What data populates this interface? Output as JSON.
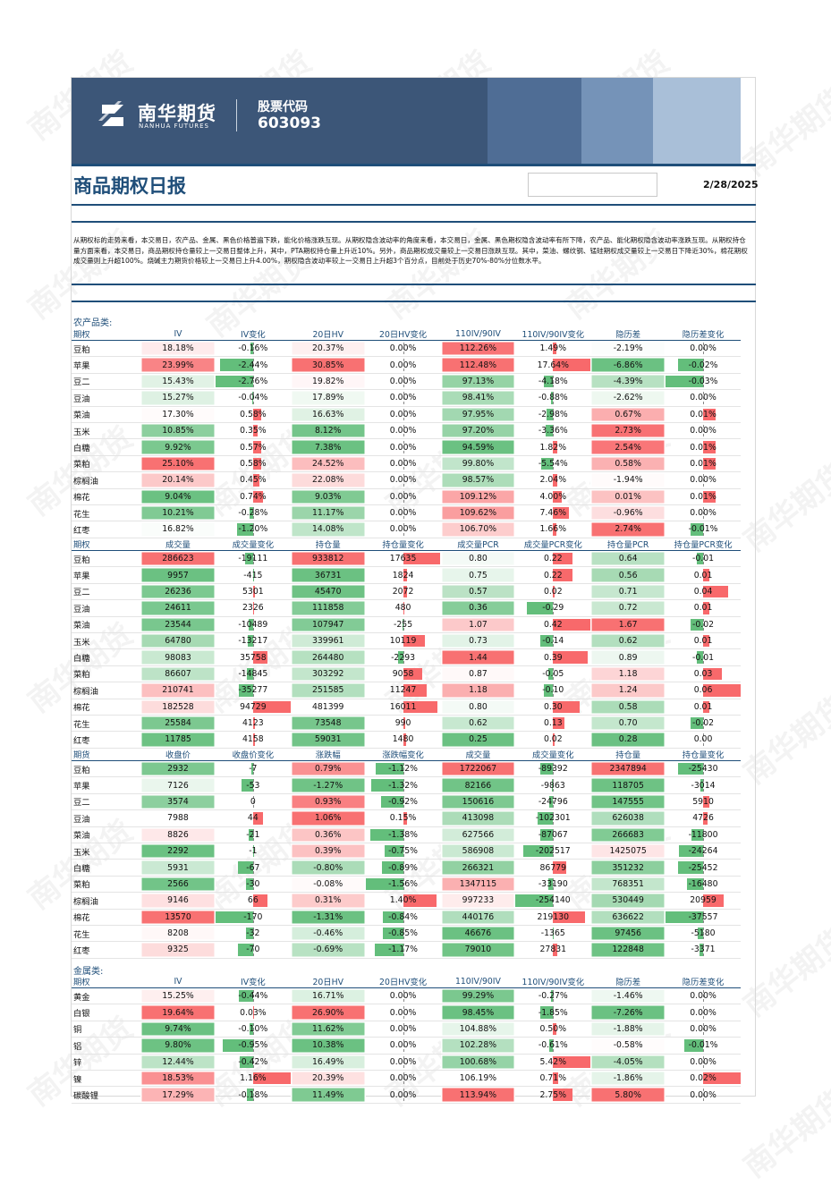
{
  "header": {
    "logo_cn": "南华期货",
    "logo_en": "NANHUA FUTURES",
    "stock_label": "股票代码",
    "stock_code": "603093",
    "report_title": "商品期权日报",
    "date": "2/28/2025"
  },
  "summary": "从期权标的走势来看，本交易日，农产品、金属、黑色价格普遍下跌，能化价格涨跌互现。从期权隐含波动率的角度来看，本交易日，金属、黑色期权隐含波动率有所下降，农产品、能化期权隐含波动率涨跌互现。从期权持仓量方面来看，本交易日，商品期权持仓量较上一交易日整体上升，其中，PTA期权持仓量上升近10%。另外，商品期权成交量较上一交易日涨跌互现。其中，菜油、螺纹钢、锰硅期权成交量较上一交易日下降近30%，棉花期权成交量则上升超100%。烧碱主力期货价格较上一交易日上升4.00%，期权隐含波动率较上一交易日上升超3个百分点，目前处于历史70%-80%分位数水平。",
  "colors": {
    "brand_blue": "#1f4e79",
    "pos_red": "#f8696b",
    "neg_green": "#63be7b"
  },
  "watermark": "南华期货",
  "sections": [
    {
      "title": "农产品类:",
      "table": {
        "headers": [
          "期权",
          "IV",
          "IV变化",
          "20日HV",
          "20日HV变化",
          "110IV/90IV",
          "110IV/90IV变化",
          "隐历差",
          "隐历差变化"
        ],
        "types": [
          "label",
          "scale",
          "bar",
          "scale",
          "bar",
          "scale",
          "bar",
          "scale",
          "bar"
        ],
        "rows": [
          [
            "豆粕",
            "18.18%",
            "-0.16%",
            "20.37%",
            "0.00%",
            "112.26%",
            "1.49%",
            "-2.19%",
            "0.00%"
          ],
          [
            "苹果",
            "23.99%",
            "-2.44%",
            "30.85%",
            "0.00%",
            "112.48%",
            "17.64%",
            "-6.86%",
            "-0.02%"
          ],
          [
            "豆二",
            "15.43%",
            "-2.76%",
            "19.82%",
            "0.00%",
            "97.13%",
            "-4.18%",
            "-4.39%",
            "-0.03%"
          ],
          [
            "豆油",
            "15.27%",
            "-0.04%",
            "17.89%",
            "0.00%",
            "98.41%",
            "-0.88%",
            "-2.62%",
            "0.00%"
          ],
          [
            "菜油",
            "17.30%",
            "0.58%",
            "16.63%",
            "0.00%",
            "97.95%",
            "-2.98%",
            "0.67%",
            "0.01%"
          ],
          [
            "玉米",
            "10.85%",
            "0.35%",
            "8.12%",
            "0.00%",
            "97.20%",
            "-3.36%",
            "2.73%",
            "0.00%"
          ],
          [
            "白糖",
            "9.92%",
            "0.57%",
            "7.38%",
            "0.00%",
            "94.59%",
            "1.82%",
            "2.54%",
            "0.01%"
          ],
          [
            "菜粕",
            "25.10%",
            "0.58%",
            "24.52%",
            "0.00%",
            "99.80%",
            "-5.54%",
            "0.58%",
            "0.01%"
          ],
          [
            "棕榈油",
            "20.14%",
            "0.45%",
            "22.08%",
            "0.00%",
            "98.57%",
            "2.04%",
            "-1.94%",
            "0.00%"
          ],
          [
            "棉花",
            "9.04%",
            "0.74%",
            "9.03%",
            "0.00%",
            "109.12%",
            "4.00%",
            "0.01%",
            "0.01%"
          ],
          [
            "花生",
            "10.21%",
            "-0.28%",
            "11.17%",
            "0.00%",
            "109.62%",
            "7.46%",
            "-0.96%",
            "0.00%"
          ],
          [
            "红枣",
            "16.82%",
            "-1.20%",
            "14.08%",
            "0.00%",
            "106.70%",
            "1.66%",
            "2.74%",
            "-0.01%"
          ]
        ]
      }
    },
    {
      "title": "",
      "table": {
        "headers": [
          "期权",
          "成交量",
          "成交量变化",
          "持仓量",
          "持仓量变化",
          "成交量PCR",
          "成交量PCR变化",
          "持仓量PCR",
          "持仓量PCR变化"
        ],
        "types": [
          "label",
          "scale",
          "bar",
          "scale",
          "bar",
          "scale",
          "bar",
          "scale",
          "bar"
        ],
        "rows": [
          [
            "豆粕",
            "286623",
            "-19111",
            "933812",
            "17635",
            "0.80",
            "0.22",
            "0.64",
            "-0.01"
          ],
          [
            "苹果",
            "9957",
            "-415",
            "36731",
            "1824",
            "0.75",
            "0.22",
            "0.56",
            "0.01"
          ],
          [
            "豆二",
            "26236",
            "5301",
            "45470",
            "2072",
            "0.57",
            "0.02",
            "0.71",
            "0.04"
          ],
          [
            "豆油",
            "24611",
            "2326",
            "111858",
            "480",
            "0.36",
            "-0.29",
            "0.72",
            "0.01"
          ],
          [
            "菜油",
            "23544",
            "-10489",
            "107947",
            "-255",
            "1.07",
            "0.42",
            "1.67",
            "-0.02"
          ],
          [
            "玉米",
            "64780",
            "-13217",
            "339961",
            "10119",
            "0.73",
            "-0.14",
            "0.62",
            "0.01"
          ],
          [
            "白糖",
            "98083",
            "35758",
            "264480",
            "-2293",
            "1.44",
            "0.39",
            "0.89",
            "-0.01"
          ],
          [
            "菜粕",
            "86607",
            "-14845",
            "303292",
            "9058",
            "0.87",
            "-0.05",
            "1.18",
            "0.03"
          ],
          [
            "棕榈油",
            "210741",
            "-35277",
            "251585",
            "11247",
            "1.18",
            "-0.10",
            "1.24",
            "0.06"
          ],
          [
            "棉花",
            "182528",
            "94729",
            "481399",
            "16011",
            "0.80",
            "0.30",
            "0.58",
            "0.01"
          ],
          [
            "花生",
            "25584",
            "4123",
            "73548",
            "990",
            "0.62",
            "0.13",
            "0.70",
            "-0.02"
          ],
          [
            "红枣",
            "11785",
            "4158",
            "59031",
            "1480",
            "0.25",
            "0.02",
            "0.28",
            "0.00"
          ]
        ]
      }
    },
    {
      "title": "",
      "table": {
        "headers": [
          "期货",
          "收盘价",
          "收盘价变化",
          "涨跌幅",
          "涨跌幅变化",
          "成交量",
          "成交量变化",
          "持仓量",
          "持仓量变化"
        ],
        "types": [
          "label",
          "scale",
          "bar",
          "scale",
          "bar",
          "scale",
          "bar",
          "scale",
          "bar"
        ],
        "rows": [
          [
            "豆粕",
            "2932",
            "-7",
            "0.79%",
            "-1.12%",
            "1722067",
            "-89392",
            "2347894",
            "-25430"
          ],
          [
            "苹果",
            "7126",
            "-53",
            "-1.27%",
            "-1.32%",
            "82166",
            "-9863",
            "118705",
            "-3014"
          ],
          [
            "豆二",
            "3574",
            "0",
            "0.93%",
            "-0.92%",
            "150616",
            "-24796",
            "147555",
            "5910"
          ],
          [
            "豆油",
            "7988",
            "44",
            "1.06%",
            "0.15%",
            "413098",
            "-102301",
            "626038",
            "4726"
          ],
          [
            "菜油",
            "8826",
            "-21",
            "0.36%",
            "-1.38%",
            "627566",
            "-87067",
            "266683",
            "-11800"
          ],
          [
            "玉米",
            "2292",
            "-1",
            "0.39%",
            "-0.75%",
            "586908",
            "-202517",
            "1425075",
            "-24264"
          ],
          [
            "白糖",
            "5931",
            "-67",
            "-0.80%",
            "-0.89%",
            "266321",
            "86779",
            "351232",
            "-25452"
          ],
          [
            "菜粕",
            "2566",
            "-30",
            "-0.08%",
            "-1.56%",
            "1347115",
            "-33190",
            "768351",
            "-16480"
          ],
          [
            "棕榈油",
            "9146",
            "66",
            "0.31%",
            "1.40%",
            "997233",
            "-254140",
            "530449",
            "20959"
          ],
          [
            "棉花",
            "13570",
            "-170",
            "-1.31%",
            "-0.84%",
            "440176",
            "219130",
            "636622",
            "-37557"
          ],
          [
            "花生",
            "8208",
            "-32",
            "-0.46%",
            "-0.85%",
            "46676",
            "-1365",
            "97456",
            "-5180"
          ],
          [
            "红枣",
            "9325",
            "-70",
            "-0.69%",
            "-1.17%",
            "79010",
            "27831",
            "122848",
            "-3371"
          ]
        ]
      }
    },
    {
      "title": "金属类:",
      "table": {
        "headers": [
          "期权",
          "IV",
          "IV变化",
          "20日HV",
          "20日HV变化",
          "110IV/90IV",
          "110IV/90IV变化",
          "隐历差",
          "隐历差变化"
        ],
        "types": [
          "label",
          "scale",
          "bar",
          "scale",
          "bar",
          "scale",
          "bar",
          "scale",
          "bar"
        ],
        "rows": [
          [
            "黄金",
            "15.25%",
            "-0.44%",
            "16.71%",
            "0.00%",
            "99.29%",
            "-0.27%",
            "-1.46%",
            "0.00%"
          ],
          [
            "白银",
            "19.64%",
            "0.03%",
            "26.90%",
            "0.00%",
            "98.45%",
            "-1.85%",
            "-7.26%",
            "0.00%"
          ],
          [
            "铜",
            "9.74%",
            "-0.10%",
            "11.62%",
            "0.00%",
            "104.88%",
            "0.50%",
            "-1.88%",
            "0.00%"
          ],
          [
            "铝",
            "9.80%",
            "-0.95%",
            "10.38%",
            "0.00%",
            "102.28%",
            "-0.61%",
            "-0.58%",
            "-0.01%"
          ],
          [
            "锌",
            "12.44%",
            "-0.42%",
            "16.49%",
            "0.00%",
            "100.68%",
            "5.42%",
            "-4.05%",
            "0.00%"
          ],
          [
            "镍",
            "18.53%",
            "1.16%",
            "20.39%",
            "0.00%",
            "106.19%",
            "0.71%",
            "-1.86%",
            "0.02%"
          ],
          [
            "碳酸锂",
            "17.29%",
            "-0.18%",
            "11.49%",
            "0.00%",
            "113.94%",
            "2.75%",
            "5.80%",
            "0.00%"
          ]
        ]
      }
    }
  ]
}
